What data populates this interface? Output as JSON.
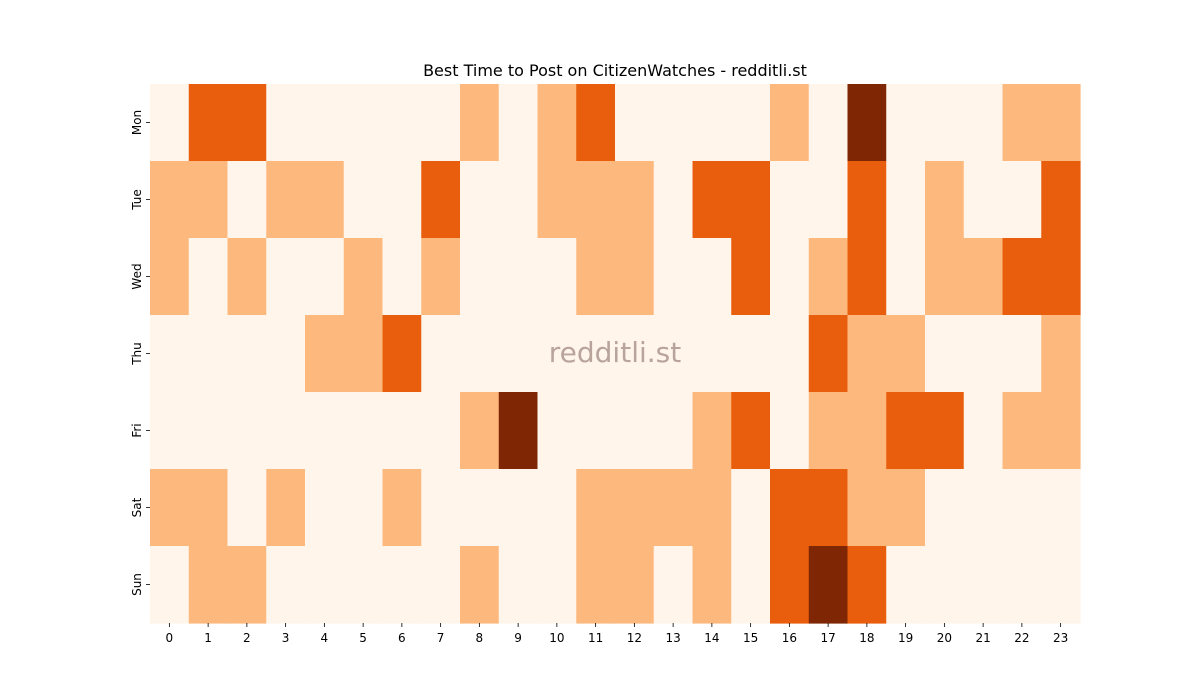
{
  "chart_data": {
    "type": "heatmap",
    "title": "Best Time to Post on CitizenWatches - redditli.st",
    "xlabel": "",
    "ylabel": "",
    "x_categories": [
      "0",
      "1",
      "2",
      "3",
      "4",
      "5",
      "6",
      "7",
      "8",
      "9",
      "10",
      "11",
      "12",
      "13",
      "14",
      "15",
      "16",
      "17",
      "18",
      "19",
      "20",
      "21",
      "22",
      "23"
    ],
    "y_categories": [
      "Mon",
      "Tue",
      "Wed",
      "Thu",
      "Fri",
      "Sat",
      "Sun"
    ],
    "colormap": "Oranges",
    "level_colors": [
      "#fff5eb",
      "#fdb97d",
      "#e95e0d",
      "#7f2704"
    ],
    "values": [
      [
        0,
        2,
        2,
        0,
        0,
        0,
        0,
        0,
        1,
        0,
        1,
        2,
        0,
        0,
        0,
        0,
        1,
        0,
        3,
        0,
        0,
        0,
        1,
        1
      ],
      [
        1,
        1,
        0,
        1,
        1,
        0,
        0,
        2,
        0,
        0,
        1,
        1,
        1,
        0,
        2,
        2,
        0,
        0,
        2,
        0,
        1,
        0,
        0,
        2
      ],
      [
        1,
        0,
        1,
        0,
        0,
        1,
        0,
        1,
        0,
        0,
        0,
        1,
        1,
        0,
        0,
        2,
        0,
        1,
        2,
        0,
        1,
        1,
        2,
        2
      ],
      [
        0,
        0,
        0,
        0,
        1,
        1,
        2,
        0,
        0,
        0,
        0,
        0,
        0,
        0,
        0,
        0,
        0,
        2,
        1,
        1,
        0,
        0,
        0,
        1
      ],
      [
        0,
        0,
        0,
        0,
        0,
        0,
        0,
        0,
        1,
        3,
        0,
        0,
        0,
        0,
        1,
        2,
        0,
        1,
        1,
        2,
        2,
        0,
        1,
        1
      ],
      [
        1,
        1,
        0,
        1,
        0,
        0,
        1,
        0,
        0,
        0,
        0,
        1,
        1,
        1,
        1,
        0,
        2,
        2,
        1,
        1,
        0,
        0,
        0,
        0
      ],
      [
        0,
        1,
        1,
        0,
        0,
        0,
        0,
        0,
        1,
        0,
        0,
        1,
        1,
        0,
        1,
        0,
        2,
        3,
        2,
        0,
        0,
        0,
        0,
        0
      ]
    ],
    "grid": false,
    "legend": "none",
    "watermark": "redditli.st"
  }
}
